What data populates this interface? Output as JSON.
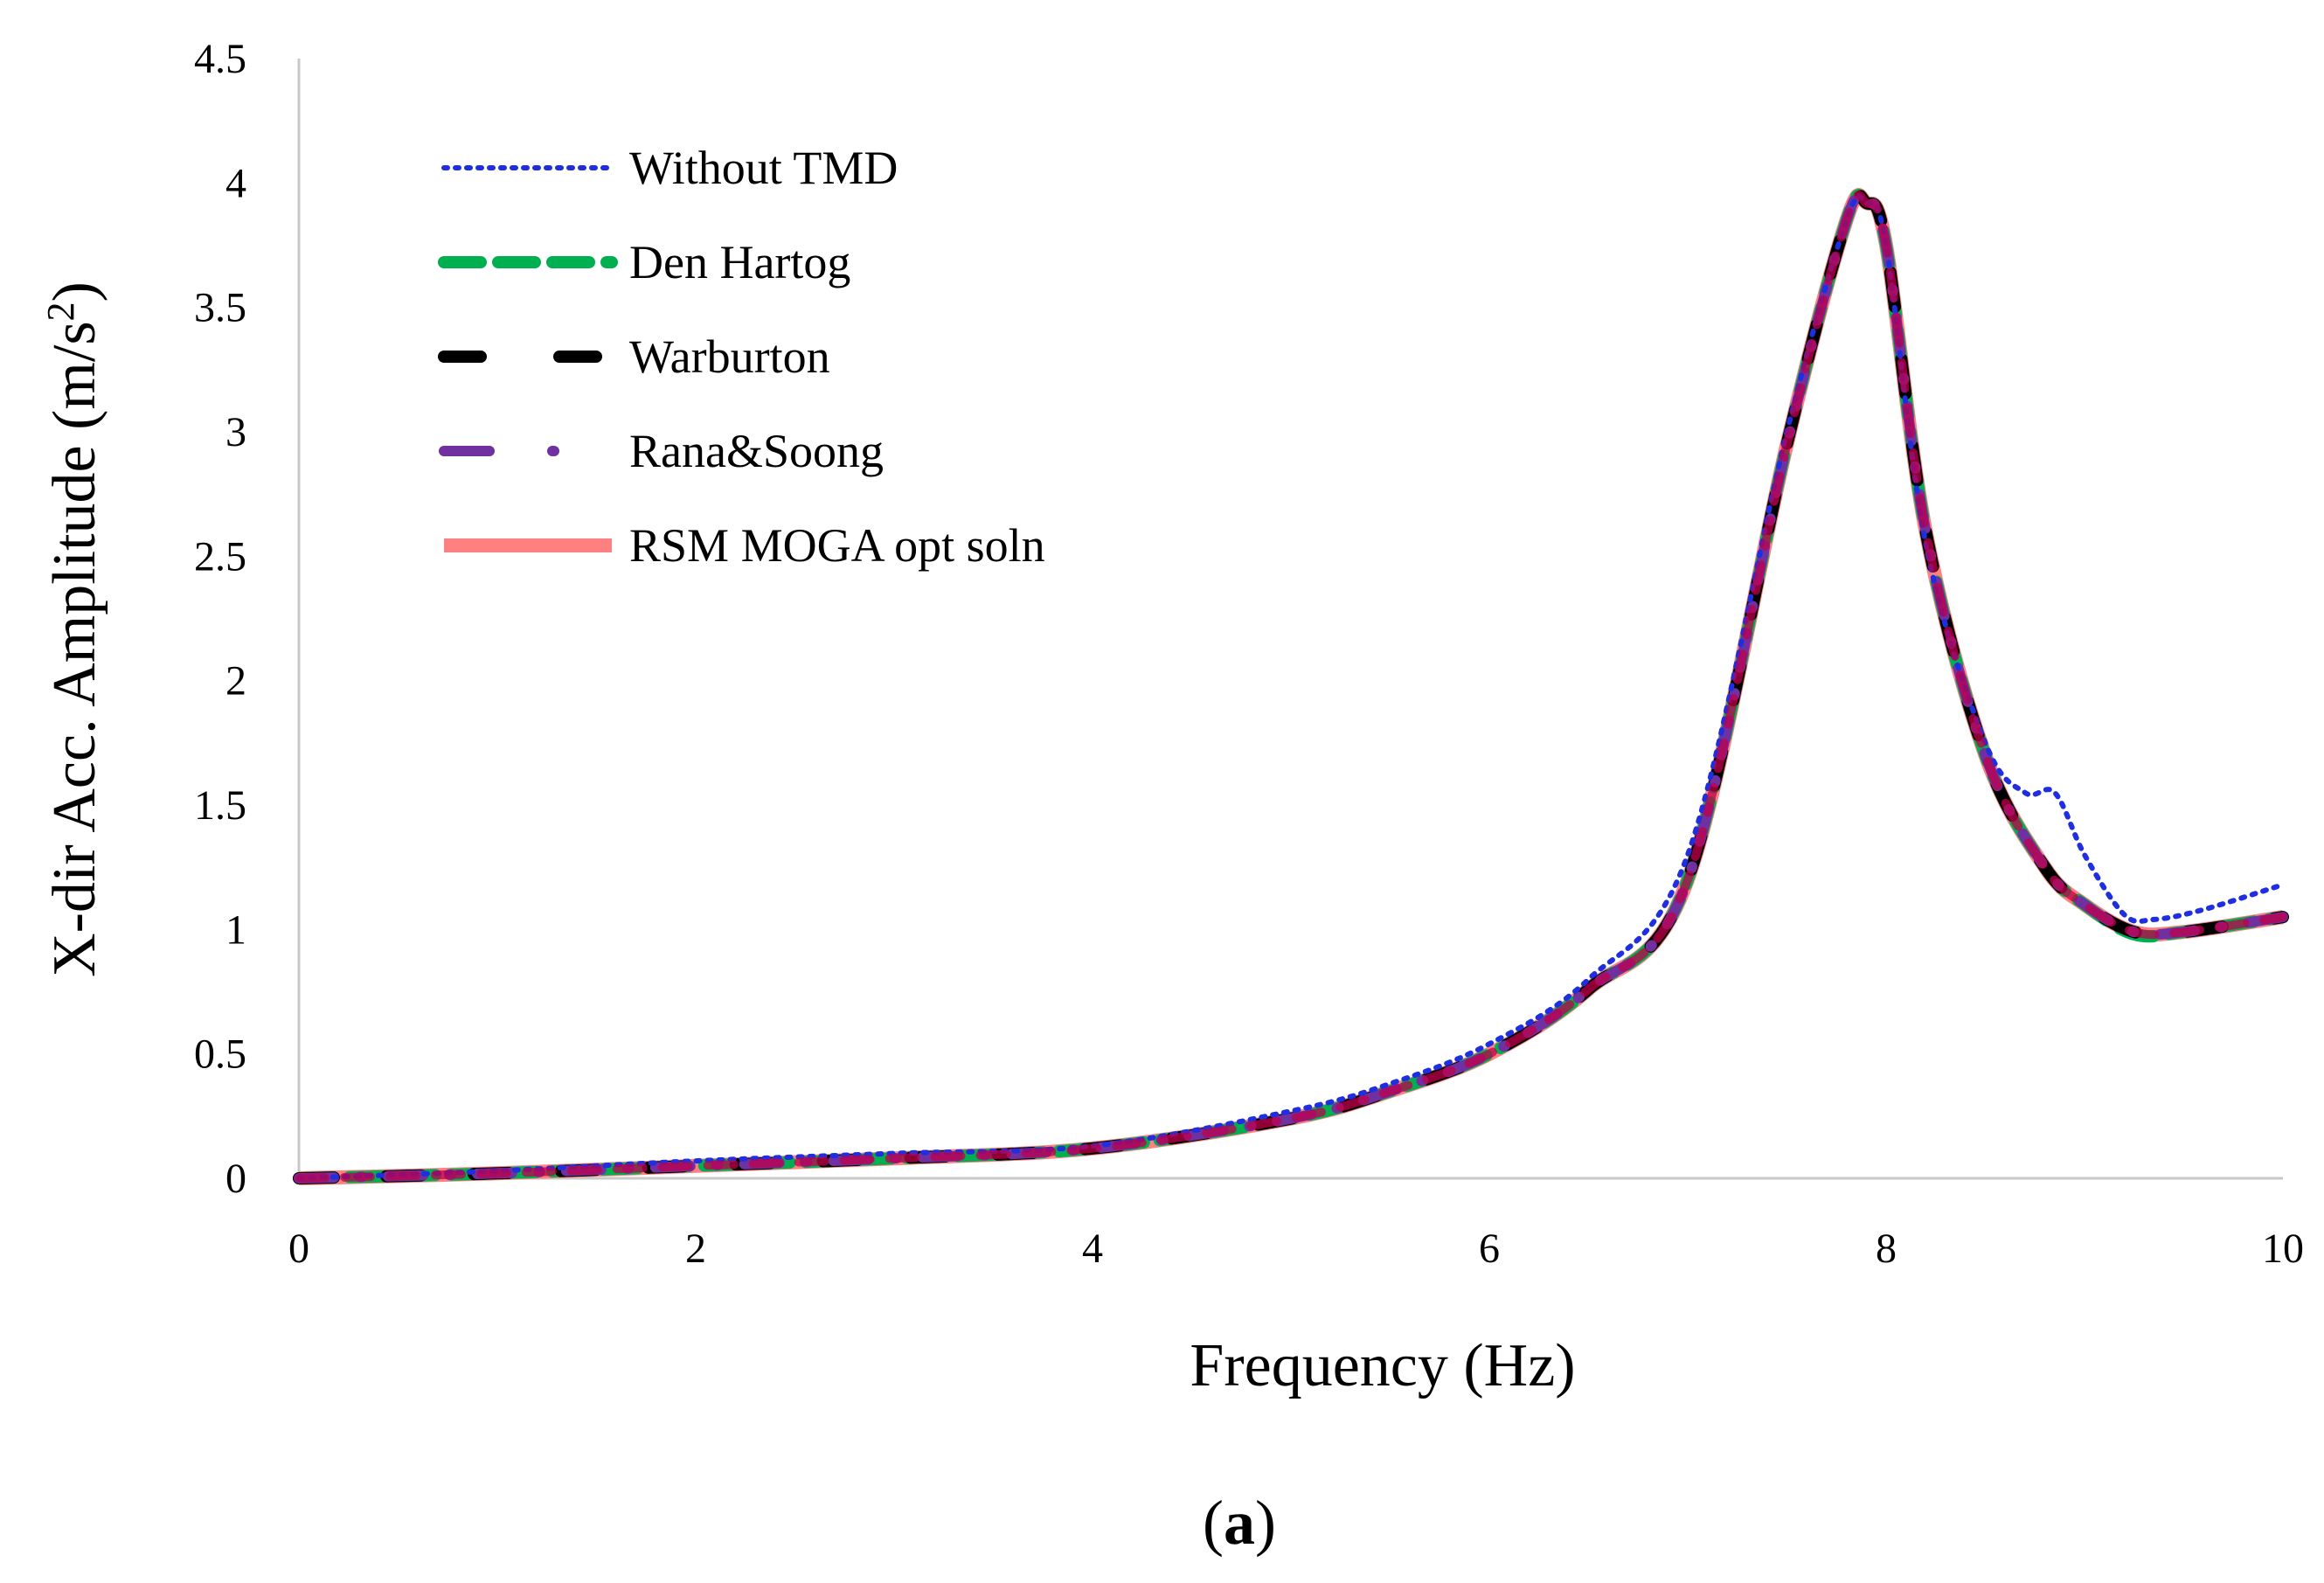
{
  "chart_data": {
    "type": "line",
    "title": "",
    "xlabel": "Frequency (Hz)",
    "ylabel": "X-dir Acc. Amplitude (m/s",
    "ylabel_sup": "2",
    "ylabel_end": ")",
    "xlim": [
      0,
      10
    ],
    "ylim": [
      0,
      4.5
    ],
    "xticks": [
      0,
      2,
      4,
      6,
      8,
      10
    ],
    "xtick_labels": [
      "0",
      "2",
      "4",
      "6",
      "8",
      "10"
    ],
    "yticks": [
      0,
      0.5,
      1,
      1.5,
      2,
      2.5,
      3,
      3.5,
      4,
      4.5
    ],
    "ytick_labels": [
      "0",
      "0.5",
      "1",
      "1.5",
      "2",
      "2.5",
      "3",
      "3.5",
      "4",
      "4.5"
    ],
    "grid": false,
    "legend_position": "top-left",
    "caption_open": "(",
    "caption_bold": "a",
    "caption_close": ")",
    "series": [
      {
        "name": "Without TMD",
        "color": "#1f2fe0",
        "style": "dotted",
        "x": [
          0,
          1,
          2,
          3,
          4,
          5,
          5.5,
          6,
          6.5,
          7,
          7.5,
          7.8,
          7.9,
          8,
          8.2,
          8.5,
          8.7,
          8.85,
          9,
          9.2,
          9.35,
          9.6,
          10
        ],
        "y": [
          0,
          0.03,
          0.07,
          0.1,
          0.13,
          0.27,
          0.38,
          0.54,
          0.8,
          1.3,
          3.0,
          3.85,
          3.92,
          3.75,
          2.55,
          1.75,
          1.55,
          1.55,
          1.3,
          1.06,
          1.04,
          1.08,
          1.18
        ]
      },
      {
        "name": "Den Hartog",
        "color": "#00b050",
        "style": "dashed",
        "x": [
          0,
          1,
          2,
          3,
          4,
          5,
          5.5,
          6,
          6.5,
          7,
          7.5,
          7.8,
          7.9,
          8,
          8.2,
          8.5,
          8.8,
          9,
          9.25,
          9.5,
          10
        ],
        "y": [
          0,
          0.02,
          0.05,
          0.08,
          0.12,
          0.24,
          0.35,
          0.5,
          0.76,
          1.2,
          2.95,
          3.85,
          3.92,
          3.75,
          2.6,
          1.7,
          1.25,
          1.1,
          0.98,
          0.99,
          1.05
        ]
      },
      {
        "name": "Warburton",
        "color": "#000000",
        "style": "long-dash",
        "x": [
          0,
          1,
          2,
          3,
          4,
          5,
          5.5,
          6,
          6.5,
          7,
          7.5,
          7.8,
          7.9,
          8,
          8.2,
          8.5,
          8.8,
          9,
          9.25,
          9.5,
          10
        ],
        "y": [
          0,
          0.02,
          0.05,
          0.08,
          0.12,
          0.24,
          0.35,
          0.5,
          0.76,
          1.2,
          2.95,
          3.85,
          3.92,
          3.75,
          2.6,
          1.7,
          1.25,
          1.1,
          0.99,
          0.99,
          1.05
        ]
      },
      {
        "name": "Rana&Soong",
        "color": "#7030a0",
        "style": "dash-dot",
        "x": [
          0,
          1,
          2,
          3,
          4,
          5,
          5.5,
          6,
          6.5,
          7,
          7.5,
          7.8,
          7.9,
          8,
          8.2,
          8.5,
          8.8,
          9,
          9.25,
          9.5,
          10
        ],
        "y": [
          0,
          0.02,
          0.05,
          0.08,
          0.12,
          0.24,
          0.35,
          0.5,
          0.76,
          1.2,
          2.95,
          3.85,
          3.92,
          3.75,
          2.6,
          1.7,
          1.25,
          1.1,
          0.99,
          0.99,
          1.05
        ]
      },
      {
        "name": "RSM MOGA opt soln",
        "color": "#ff8080",
        "style": "solid",
        "x": [
          0,
          1,
          2,
          3,
          4,
          5,
          5.5,
          6,
          6.5,
          7,
          7.5,
          7.8,
          7.9,
          8,
          8.2,
          8.5,
          8.8,
          9,
          9.25,
          9.5,
          10
        ],
        "y": [
          0,
          0.02,
          0.05,
          0.08,
          0.12,
          0.24,
          0.35,
          0.5,
          0.76,
          1.2,
          2.95,
          3.85,
          3.92,
          3.75,
          2.6,
          1.7,
          1.25,
          1.1,
          0.99,
          0.99,
          1.05
        ]
      }
    ]
  }
}
